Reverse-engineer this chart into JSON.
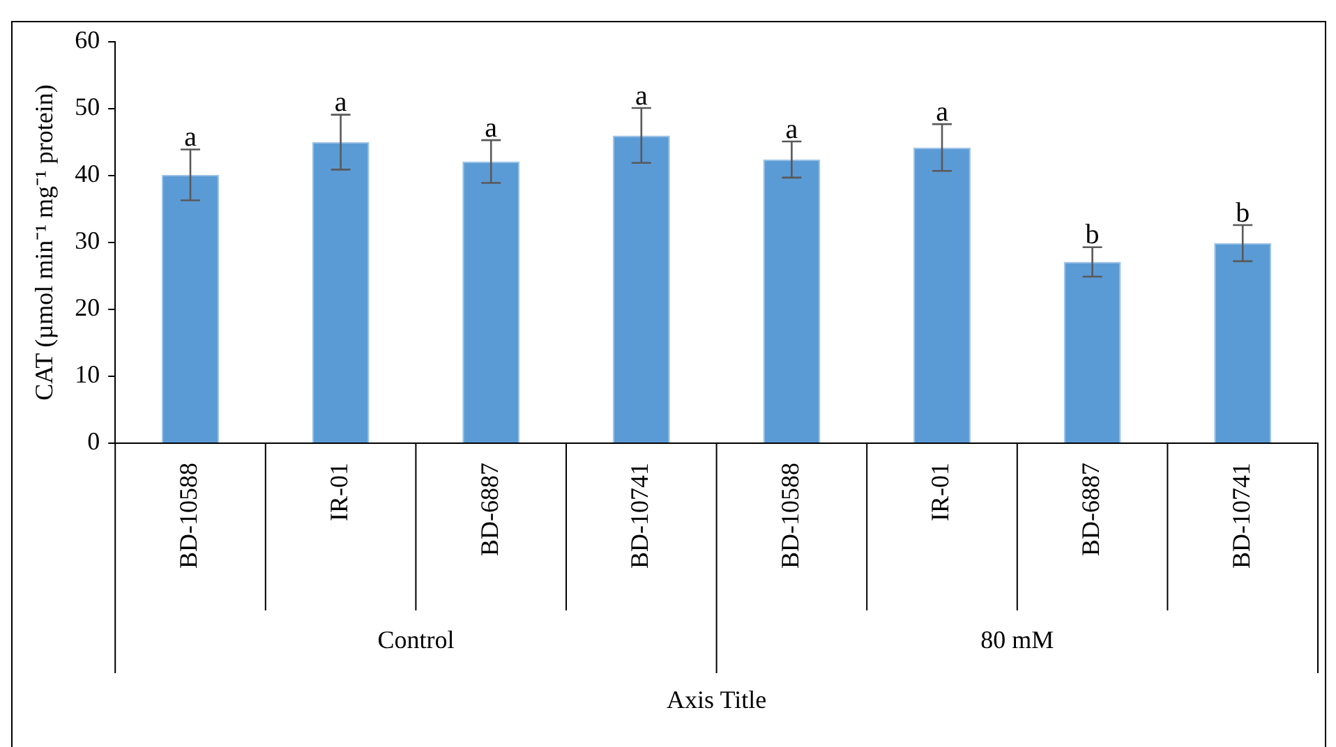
{
  "chart_data": {
    "type": "bar",
    "ylabel": "CAT (µmol min⁻¹ mg⁻¹ protein)",
    "xlabel": "Axis Title",
    "categories": [
      "BD-10588",
      "IR-01",
      "BD-6887",
      "BD-10741",
      "BD-10588",
      "IR-01",
      "BD-6887",
      "BD-10741"
    ],
    "values": [
      40.1,
      45.0,
      42.1,
      46.0,
      42.4,
      44.2,
      27.1,
      29.9
    ],
    "errors": [
      3.8,
      4.1,
      3.2,
      4.1,
      2.7,
      3.5,
      2.2,
      2.7
    ],
    "value_labels": [
      "a",
      "a",
      "a",
      "a",
      "a",
      "a",
      "b",
      "b"
    ],
    "color": "#5b9bd5",
    "annotations": [
      "Control",
      "80 mM"
    ],
    "ylim": [
      0,
      60
    ],
    "yticks": [
      0,
      10,
      20,
      30,
      40,
      50,
      60
    ],
    "grid": false,
    "legend": false
  }
}
